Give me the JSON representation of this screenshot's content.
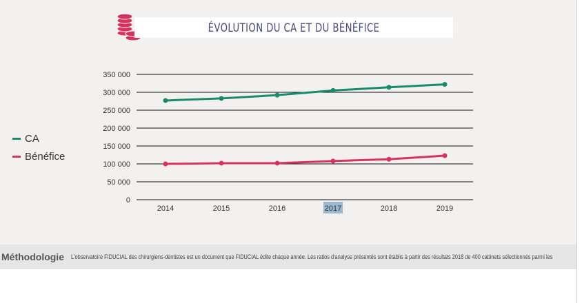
{
  "header": {
    "title": "ÉVOLUTION DU CA ET DU BÉNÉFICE",
    "icon": "coins-icon"
  },
  "chart_data": {
    "type": "line",
    "title": "ÉVOLUTION DU CA ET DU BÉNÉFICE",
    "categories": [
      "2014",
      "2015",
      "2016",
      "2017",
      "2018",
      "2019"
    ],
    "series": [
      {
        "name": "CA",
        "color": "#1a8a6e",
        "values": [
          277000,
          283000,
          292000,
          305000,
          314000,
          322000
        ]
      },
      {
        "name": "Bénéfice",
        "color": "#d6335e",
        "values": [
          100000,
          102000,
          102000,
          108000,
          113000,
          123000
        ]
      }
    ],
    "ylim": [
      0,
      350000
    ],
    "yticks": [
      "0",
      "50 000",
      "100 000",
      "150 000",
      "200 000",
      "250 000",
      "300 000",
      "350 000"
    ],
    "grid": true,
    "legend": "left",
    "highlighted_tick": "2017"
  },
  "footer": {
    "label": "Méthodologie",
    "text": "L'observatoire FIDUCIAL des chirurgiens-dentistes est un document que FIDUCIAL édite chaque année. Les ratios d'analyse présentés sont établis à partir des résultats 2018 de 400 cabinets sélectionnés parmi les"
  }
}
